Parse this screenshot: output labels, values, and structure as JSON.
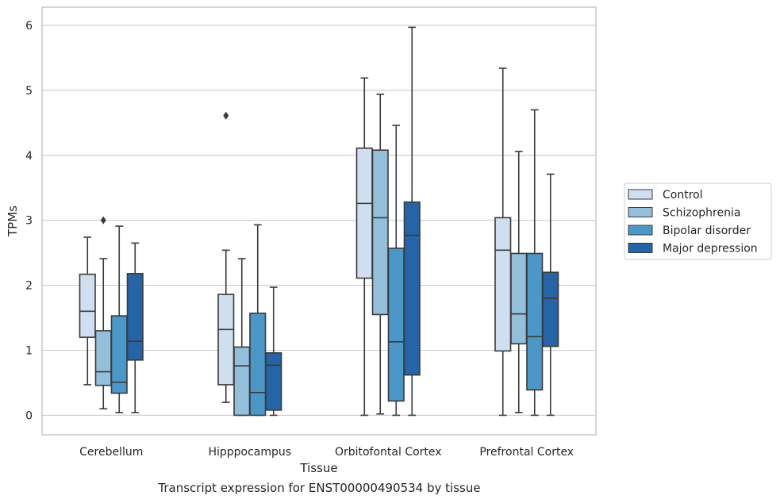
{
  "caption": "Transcript expression for ENST00000490534 by tissue",
  "chart_data": {
    "type": "box",
    "xlabel": "Tissue",
    "ylabel": "TPMs",
    "ylim": [
      -0.3,
      6.28
    ],
    "yticks": [
      0,
      1,
      2,
      3,
      4,
      5,
      6
    ],
    "grid": true,
    "legend_position": "right",
    "categories": [
      "Cerebellum",
      "Hipppocampus",
      "Orbitofontal Cortex",
      "Prefrontal Cortex"
    ],
    "series": [
      {
        "name": "Control",
        "color": "#cfdff0",
        "boxes": [
          {
            "whisker_low": 0.47,
            "q1": 1.2,
            "median": 1.6,
            "q3": 2.17,
            "whisker_high": 2.74,
            "outliers": []
          },
          {
            "whisker_low": 0.2,
            "q1": 0.47,
            "median": 1.32,
            "q3": 1.86,
            "whisker_high": 2.54,
            "outliers": [
              4.61
            ]
          },
          {
            "whisker_low": 0.0,
            "q1": 2.11,
            "median": 3.26,
            "q3": 4.11,
            "whisker_high": 5.19,
            "outliers": []
          },
          {
            "whisker_low": 0.0,
            "q1": 0.99,
            "median": 2.54,
            "q3": 3.04,
            "whisker_high": 5.34,
            "outliers": []
          }
        ]
      },
      {
        "name": "Schizophrenia",
        "color": "#93bfdb",
        "boxes": [
          {
            "whisker_low": 0.1,
            "q1": 0.46,
            "median": 0.67,
            "q3": 1.3,
            "whisker_high": 2.41,
            "outliers": [
              3.0
            ]
          },
          {
            "whisker_low": 0.0,
            "q1": 0.0,
            "median": 0.76,
            "q3": 1.05,
            "whisker_high": 2.41,
            "outliers": []
          },
          {
            "whisker_low": 0.02,
            "q1": 1.55,
            "median": 3.04,
            "q3": 4.08,
            "whisker_high": 4.94,
            "outliers": []
          },
          {
            "whisker_low": 0.04,
            "q1": 1.1,
            "median": 1.56,
            "q3": 2.49,
            "whisker_high": 4.06,
            "outliers": []
          }
        ]
      },
      {
        "name": "Bipolar disorder",
        "color": "#4b98c8",
        "boxes": [
          {
            "whisker_low": 0.04,
            "q1": 0.34,
            "median": 0.51,
            "q3": 1.53,
            "whisker_high": 2.91,
            "outliers": []
          },
          {
            "whisker_low": 0.0,
            "q1": 0.0,
            "median": 0.35,
            "q3": 1.57,
            "whisker_high": 2.93,
            "outliers": []
          },
          {
            "whisker_low": 0.0,
            "q1": 0.22,
            "median": 1.13,
            "q3": 2.57,
            "whisker_high": 4.46,
            "outliers": []
          },
          {
            "whisker_low": 0.0,
            "q1": 0.39,
            "median": 1.21,
            "q3": 2.49,
            "whisker_high": 4.7,
            "outliers": []
          }
        ]
      },
      {
        "name": "Major depression",
        "color": "#2565a7",
        "boxes": [
          {
            "whisker_low": 0.04,
            "q1": 0.85,
            "median": 1.14,
            "q3": 2.18,
            "whisker_high": 2.65,
            "outliers": []
          },
          {
            "whisker_low": 0.0,
            "q1": 0.08,
            "median": 0.77,
            "q3": 0.96,
            "whisker_high": 1.97,
            "outliers": []
          },
          {
            "whisker_low": 0.0,
            "q1": 0.62,
            "median": 2.77,
            "q3": 3.28,
            "whisker_high": 5.97,
            "outliers": []
          },
          {
            "whisker_low": 0.0,
            "q1": 1.06,
            "median": 1.8,
            "q3": 2.2,
            "whisker_high": 3.71,
            "outliers": []
          }
        ]
      }
    ]
  }
}
